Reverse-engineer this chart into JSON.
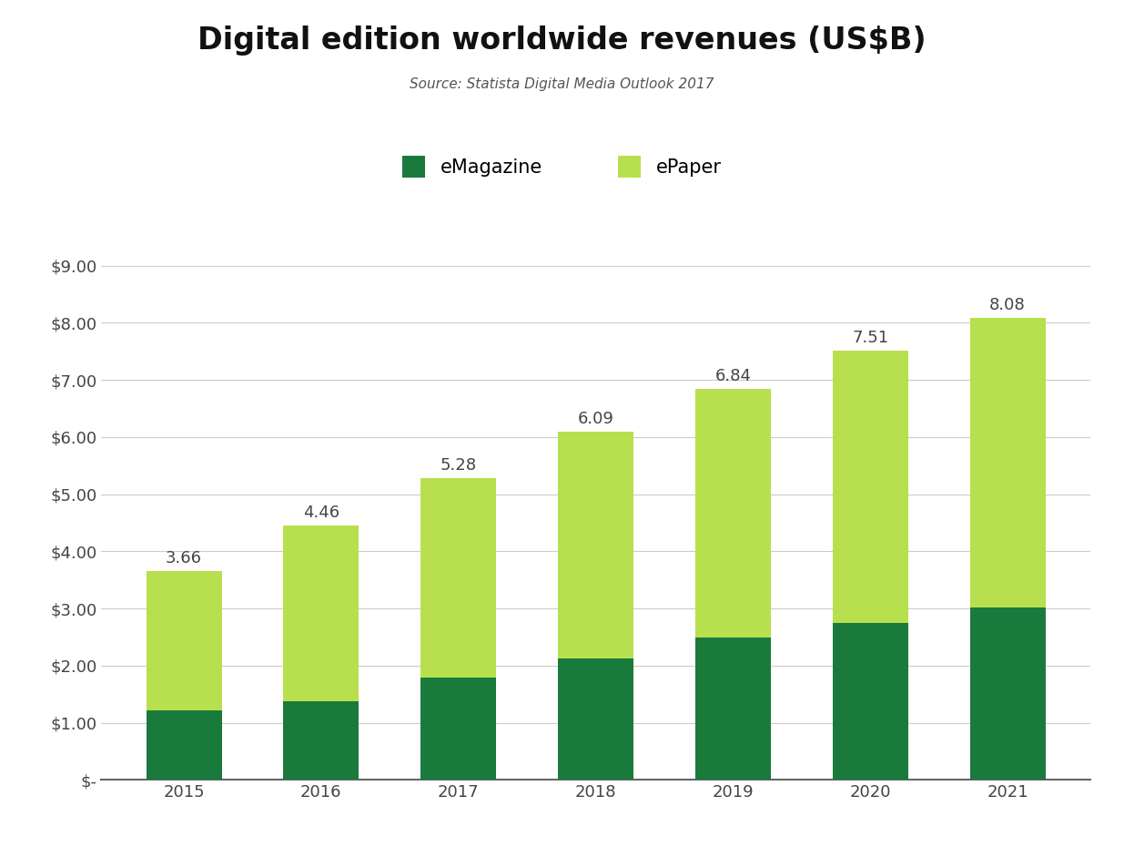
{
  "title": "Digital edition worldwide revenues (US$B)",
  "subtitle": "Source: Statista Digital Media Outlook 2017",
  "years": [
    2015,
    2016,
    2017,
    2018,
    2019,
    2020,
    2021
  ],
  "emagazine": [
    1.22,
    1.38,
    1.79,
    2.13,
    2.49,
    2.74,
    3.01
  ],
  "epaper_top": [
    3.66,
    4.46,
    5.28,
    6.09,
    6.84,
    7.51,
    8.08
  ],
  "total_labels": [
    "3.66",
    "4.46",
    "5.28",
    "6.09",
    "6.84",
    "7.51",
    "8.08"
  ],
  "emagazine_color": "#1a7a3c",
  "epaper_color": "#b8e04e",
  "ylim": [
    0,
    9.0
  ],
  "yticks": [
    0,
    1.0,
    2.0,
    3.0,
    4.0,
    5.0,
    6.0,
    7.0,
    8.0,
    9.0
  ],
  "ytick_labels": [
    "$-",
    "$1.00",
    "$2.00",
    "$3.00",
    "$4.00",
    "$5.00",
    "$6.00",
    "$7.00",
    "$8.00",
    "$9.00"
  ],
  "legend_emagazine": "eMagazine",
  "legend_epaper": "ePaper",
  "background_color": "#ffffff",
  "bar_width": 0.55,
  "title_fontsize": 24,
  "subtitle_fontsize": 11,
  "legend_fontsize": 15,
  "tick_fontsize": 13,
  "label_fontsize": 13
}
